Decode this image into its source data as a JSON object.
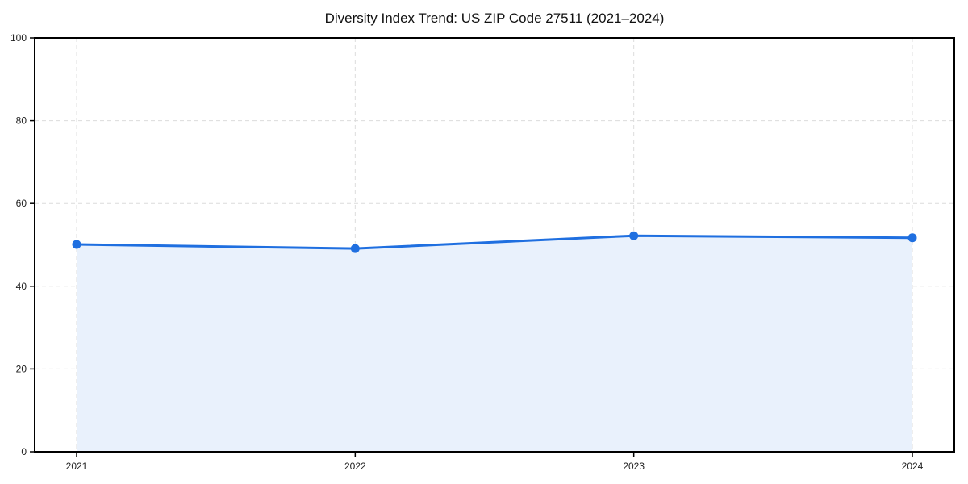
{
  "chart_data": {
    "type": "area",
    "title": "Diversity Index Trend: US ZIP Code 27511 (2021–2024)",
    "categories": [
      "2021",
      "2022",
      "2023",
      "2024"
    ],
    "values": [
      50.1,
      49.1,
      52.2,
      51.7
    ],
    "xlabel": "",
    "ylabel": "",
    "ylim": [
      0,
      100
    ],
    "yticks": [
      0,
      20,
      40,
      60,
      80,
      100
    ],
    "grid": "dashed",
    "legend": "none",
    "colors": {
      "line": "#1f6fe0",
      "marker": "#1f6fe0",
      "fill": "#e9f1fc",
      "grid": "#dcdcdc",
      "axis": "#000000",
      "tick_label": "#222222",
      "title": "#111111",
      "background": "#ffffff"
    }
  }
}
